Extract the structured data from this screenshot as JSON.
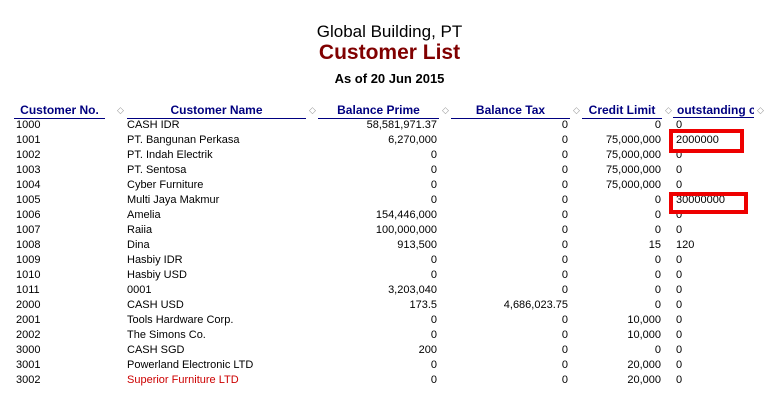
{
  "header": {
    "company": "Global Building, PT",
    "title": "Customer List",
    "date": "As of 20 Jun 2015"
  },
  "columns": [
    "Customer No.",
    "Customer Name",
    "Balance Prime",
    "Balance Tax",
    "Credit Limit",
    "outstanding c"
  ],
  "rows": [
    [
      "1000",
      "CASH IDR",
      "58,581,971.37",
      "0",
      "0",
      "0"
    ],
    [
      "1001",
      "PT. Bangunan Perkasa",
      "6,270,000",
      "0",
      "75,000,000",
      "2000000"
    ],
    [
      "1002",
      "PT. Indah Electrik",
      "0",
      "0",
      "75,000,000",
      "0"
    ],
    [
      "1003",
      "PT. Sentosa",
      "0",
      "0",
      "75,000,000",
      "0"
    ],
    [
      "1004",
      "Cyber Furniture",
      "0",
      "0",
      "75,000,000",
      "0"
    ],
    [
      "1005",
      "Multi Jaya Makmur",
      "0",
      "0",
      "0",
      "30000000"
    ],
    [
      "1006",
      "Amelia",
      "154,446,000",
      "0",
      "0",
      "0"
    ],
    [
      "1007",
      "Raiia",
      "100,000,000",
      "0",
      "0",
      "0"
    ],
    [
      "1008",
      "Dina",
      "913,500",
      "0",
      "15",
      "120"
    ],
    [
      "1009",
      "Hasbiy IDR",
      "0",
      "0",
      "0",
      "0"
    ],
    [
      "1010",
      "Hasbiy USD",
      "0",
      "0",
      "0",
      "0"
    ],
    [
      "1011",
      "0001",
      "3,203,040",
      "0",
      "0",
      "0"
    ],
    [
      "2000",
      "CASH USD",
      "173.5",
      "4,686,023.75",
      "0",
      "0"
    ],
    [
      "2001",
      "Tools Hardware Corp.",
      "0",
      "0",
      "10,000",
      "0"
    ],
    [
      "2002",
      "The Simons Co.",
      "0",
      "0",
      "10,000",
      "0"
    ],
    [
      "3000",
      "CASH SGD",
      "200",
      "0",
      "0",
      "0"
    ],
    [
      "3001",
      "Powerland Electronic LTD",
      "0",
      "0",
      "20,000",
      "0"
    ],
    [
      "3002",
      "Superior Furniture LTD",
      "0",
      "0",
      "20,000",
      "0"
    ]
  ],
  "highlight_color": "#ee0000",
  "red_text_row": "3002"
}
